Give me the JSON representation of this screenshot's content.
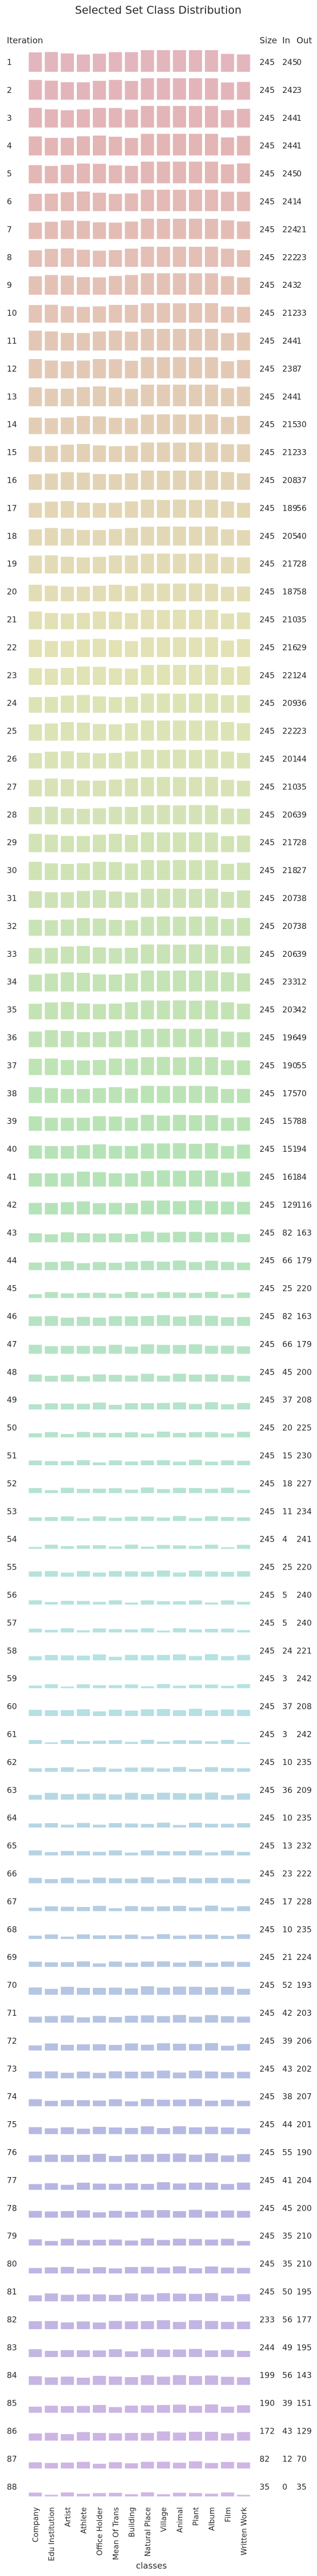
{
  "chart_data": {
    "type": "bar",
    "title": "Selected Set Class Distribution",
    "row_axis_label": "Iteration",
    "xlabel": "classes",
    "table_headers": [
      "Size",
      "In",
      "Out"
    ],
    "categories": [
      "Company",
      "Edu Institution",
      "Artist",
      "Athlete",
      "Office Holder",
      "Mean Of Trans",
      "Building",
      "Natural Place",
      "Village",
      "Animal",
      "Plant",
      "Album",
      "Film",
      "Written Work"
    ],
    "rows": [
      {
        "iteration": "1",
        "size": 245,
        "in": 245,
        "out": 0
      },
      {
        "iteration": "2",
        "size": 245,
        "in": 242,
        "out": 3
      },
      {
        "iteration": "3",
        "size": 245,
        "in": 244,
        "out": 1
      },
      {
        "iteration": "4",
        "size": 245,
        "in": 244,
        "out": 1
      },
      {
        "iteration": "5",
        "size": 245,
        "in": 245,
        "out": 0
      },
      {
        "iteration": "6",
        "size": 245,
        "in": 241,
        "out": 4
      },
      {
        "iteration": "7",
        "size": 245,
        "in": 224,
        "out": 21
      },
      {
        "iteration": "8",
        "size": 245,
        "in": 222,
        "out": 23
      },
      {
        "iteration": "9",
        "size": 245,
        "in": 243,
        "out": 2
      },
      {
        "iteration": "10",
        "size": 245,
        "in": 212,
        "out": 33
      },
      {
        "iteration": "11",
        "size": 245,
        "in": 244,
        "out": 1
      },
      {
        "iteration": "12",
        "size": 245,
        "in": 238,
        "out": 7
      },
      {
        "iteration": "13",
        "size": 245,
        "in": 244,
        "out": 1
      },
      {
        "iteration": "14",
        "size": 245,
        "in": 215,
        "out": 30
      },
      {
        "iteration": "15",
        "size": 245,
        "in": 212,
        "out": 33
      },
      {
        "iteration": "16",
        "size": 245,
        "in": 208,
        "out": 37
      },
      {
        "iteration": "17",
        "size": 245,
        "in": 189,
        "out": 56
      },
      {
        "iteration": "18",
        "size": 245,
        "in": 205,
        "out": 40
      },
      {
        "iteration": "19",
        "size": 245,
        "in": 217,
        "out": 28
      },
      {
        "iteration": "20",
        "size": 245,
        "in": 187,
        "out": 58
      },
      {
        "iteration": "21",
        "size": 245,
        "in": 210,
        "out": 35
      },
      {
        "iteration": "22",
        "size": 245,
        "in": 216,
        "out": 29
      },
      {
        "iteration": "23",
        "size": 245,
        "in": 221,
        "out": 24
      },
      {
        "iteration": "24",
        "size": 245,
        "in": 209,
        "out": 36
      },
      {
        "iteration": "25",
        "size": 245,
        "in": 222,
        "out": 23
      },
      {
        "iteration": "26",
        "size": 245,
        "in": 201,
        "out": 44
      },
      {
        "iteration": "27",
        "size": 245,
        "in": 210,
        "out": 35
      },
      {
        "iteration": "28",
        "size": 245,
        "in": 206,
        "out": 39
      },
      {
        "iteration": "29",
        "size": 245,
        "in": 217,
        "out": 28
      },
      {
        "iteration": "30",
        "size": 245,
        "in": 218,
        "out": 27
      },
      {
        "iteration": "31",
        "size": 245,
        "in": 207,
        "out": 38
      },
      {
        "iteration": "32",
        "size": 245,
        "in": 207,
        "out": 38
      },
      {
        "iteration": "33",
        "size": 245,
        "in": 206,
        "out": 39
      },
      {
        "iteration": "34",
        "size": 245,
        "in": 233,
        "out": 12
      },
      {
        "iteration": "35",
        "size": 245,
        "in": 203,
        "out": 42
      },
      {
        "iteration": "36",
        "size": 245,
        "in": 196,
        "out": 49
      },
      {
        "iteration": "37",
        "size": 245,
        "in": 190,
        "out": 55
      },
      {
        "iteration": "38",
        "size": 245,
        "in": 175,
        "out": 70
      },
      {
        "iteration": "39",
        "size": 245,
        "in": 157,
        "out": 88
      },
      {
        "iteration": "40",
        "size": 245,
        "in": 151,
        "out": 94
      },
      {
        "iteration": "41",
        "size": 245,
        "in": 161,
        "out": 84
      },
      {
        "iteration": "42",
        "size": 245,
        "in": 129,
        "out": 116
      },
      {
        "iteration": "43",
        "size": 245,
        "in": 82,
        "out": 163
      },
      {
        "iteration": "44",
        "size": 245,
        "in": 66,
        "out": 179
      },
      {
        "iteration": "45",
        "size": 245,
        "in": 25,
        "out": 220
      },
      {
        "iteration": "46",
        "size": 245,
        "in": 82,
        "out": 163
      },
      {
        "iteration": "47",
        "size": 245,
        "in": 66,
        "out": 179
      },
      {
        "iteration": "48",
        "size": 245,
        "in": 45,
        "out": 200
      },
      {
        "iteration": "49",
        "size": 245,
        "in": 37,
        "out": 208
      },
      {
        "iteration": "50",
        "size": 245,
        "in": 20,
        "out": 225
      },
      {
        "iteration": "51",
        "size": 245,
        "in": 15,
        "out": 230
      },
      {
        "iteration": "52",
        "size": 245,
        "in": 18,
        "out": 227
      },
      {
        "iteration": "53",
        "size": 245,
        "in": 11,
        "out": 234
      },
      {
        "iteration": "54",
        "size": 245,
        "in": 4,
        "out": 241
      },
      {
        "iteration": "55",
        "size": 245,
        "in": 25,
        "out": 220
      },
      {
        "iteration": "56",
        "size": 245,
        "in": 5,
        "out": 240
      },
      {
        "iteration": "57",
        "size": 245,
        "in": 5,
        "out": 240
      },
      {
        "iteration": "58",
        "size": 245,
        "in": 24,
        "out": 221
      },
      {
        "iteration": "59",
        "size": 245,
        "in": 3,
        "out": 242
      },
      {
        "iteration": "60",
        "size": 245,
        "in": 37,
        "out": 208
      },
      {
        "iteration": "61",
        "size": 245,
        "in": 3,
        "out": 242
      },
      {
        "iteration": "62",
        "size": 245,
        "in": 10,
        "out": 235
      },
      {
        "iteration": "63",
        "size": 245,
        "in": 36,
        "out": 209
      },
      {
        "iteration": "64",
        "size": 245,
        "in": 10,
        "out": 235
      },
      {
        "iteration": "65",
        "size": 245,
        "in": 13,
        "out": 232
      },
      {
        "iteration": "66",
        "size": 245,
        "in": 23,
        "out": 222
      },
      {
        "iteration": "67",
        "size": 245,
        "in": 17,
        "out": 228
      },
      {
        "iteration": "68",
        "size": 245,
        "in": 10,
        "out": 235
      },
      {
        "iteration": "69",
        "size": 245,
        "in": 21,
        "out": 224
      },
      {
        "iteration": "70",
        "size": 245,
        "in": 52,
        "out": 193
      },
      {
        "iteration": "71",
        "size": 245,
        "in": 42,
        "out": 203
      },
      {
        "iteration": "72",
        "size": 245,
        "in": 39,
        "out": 206
      },
      {
        "iteration": "73",
        "size": 245,
        "in": 43,
        "out": 202
      },
      {
        "iteration": "74",
        "size": 245,
        "in": 38,
        "out": 207
      },
      {
        "iteration": "75",
        "size": 245,
        "in": 44,
        "out": 201
      },
      {
        "iteration": "76",
        "size": 245,
        "in": 55,
        "out": 190
      },
      {
        "iteration": "77",
        "size": 245,
        "in": 41,
        "out": 204
      },
      {
        "iteration": "78",
        "size": 245,
        "in": 45,
        "out": 200
      },
      {
        "iteration": "79",
        "size": 245,
        "in": 35,
        "out": 210
      },
      {
        "iteration": "80",
        "size": 245,
        "in": 35,
        "out": 210
      },
      {
        "iteration": "81",
        "size": 245,
        "in": 50,
        "out": 195
      },
      {
        "iteration": "82",
        "size": 233,
        "in": 56,
        "out": 177
      },
      {
        "iteration": "83",
        "size": 244,
        "in": 49,
        "out": 195
      },
      {
        "iteration": "84",
        "size": 199,
        "in": 56,
        "out": 143
      },
      {
        "iteration": "85",
        "size": 190,
        "in": 39,
        "out": 151
      },
      {
        "iteration": "86",
        "size": 172,
        "in": 43,
        "out": 129
      },
      {
        "iteration": "87",
        "size": 82,
        "in": 12,
        "out": 70
      },
      {
        "iteration": "88",
        "size": 35,
        "in": 0,
        "out": 35
      }
    ],
    "axis_range_per_row": [
      0,
      1
    ],
    "grid": false,
    "legend": "none"
  }
}
